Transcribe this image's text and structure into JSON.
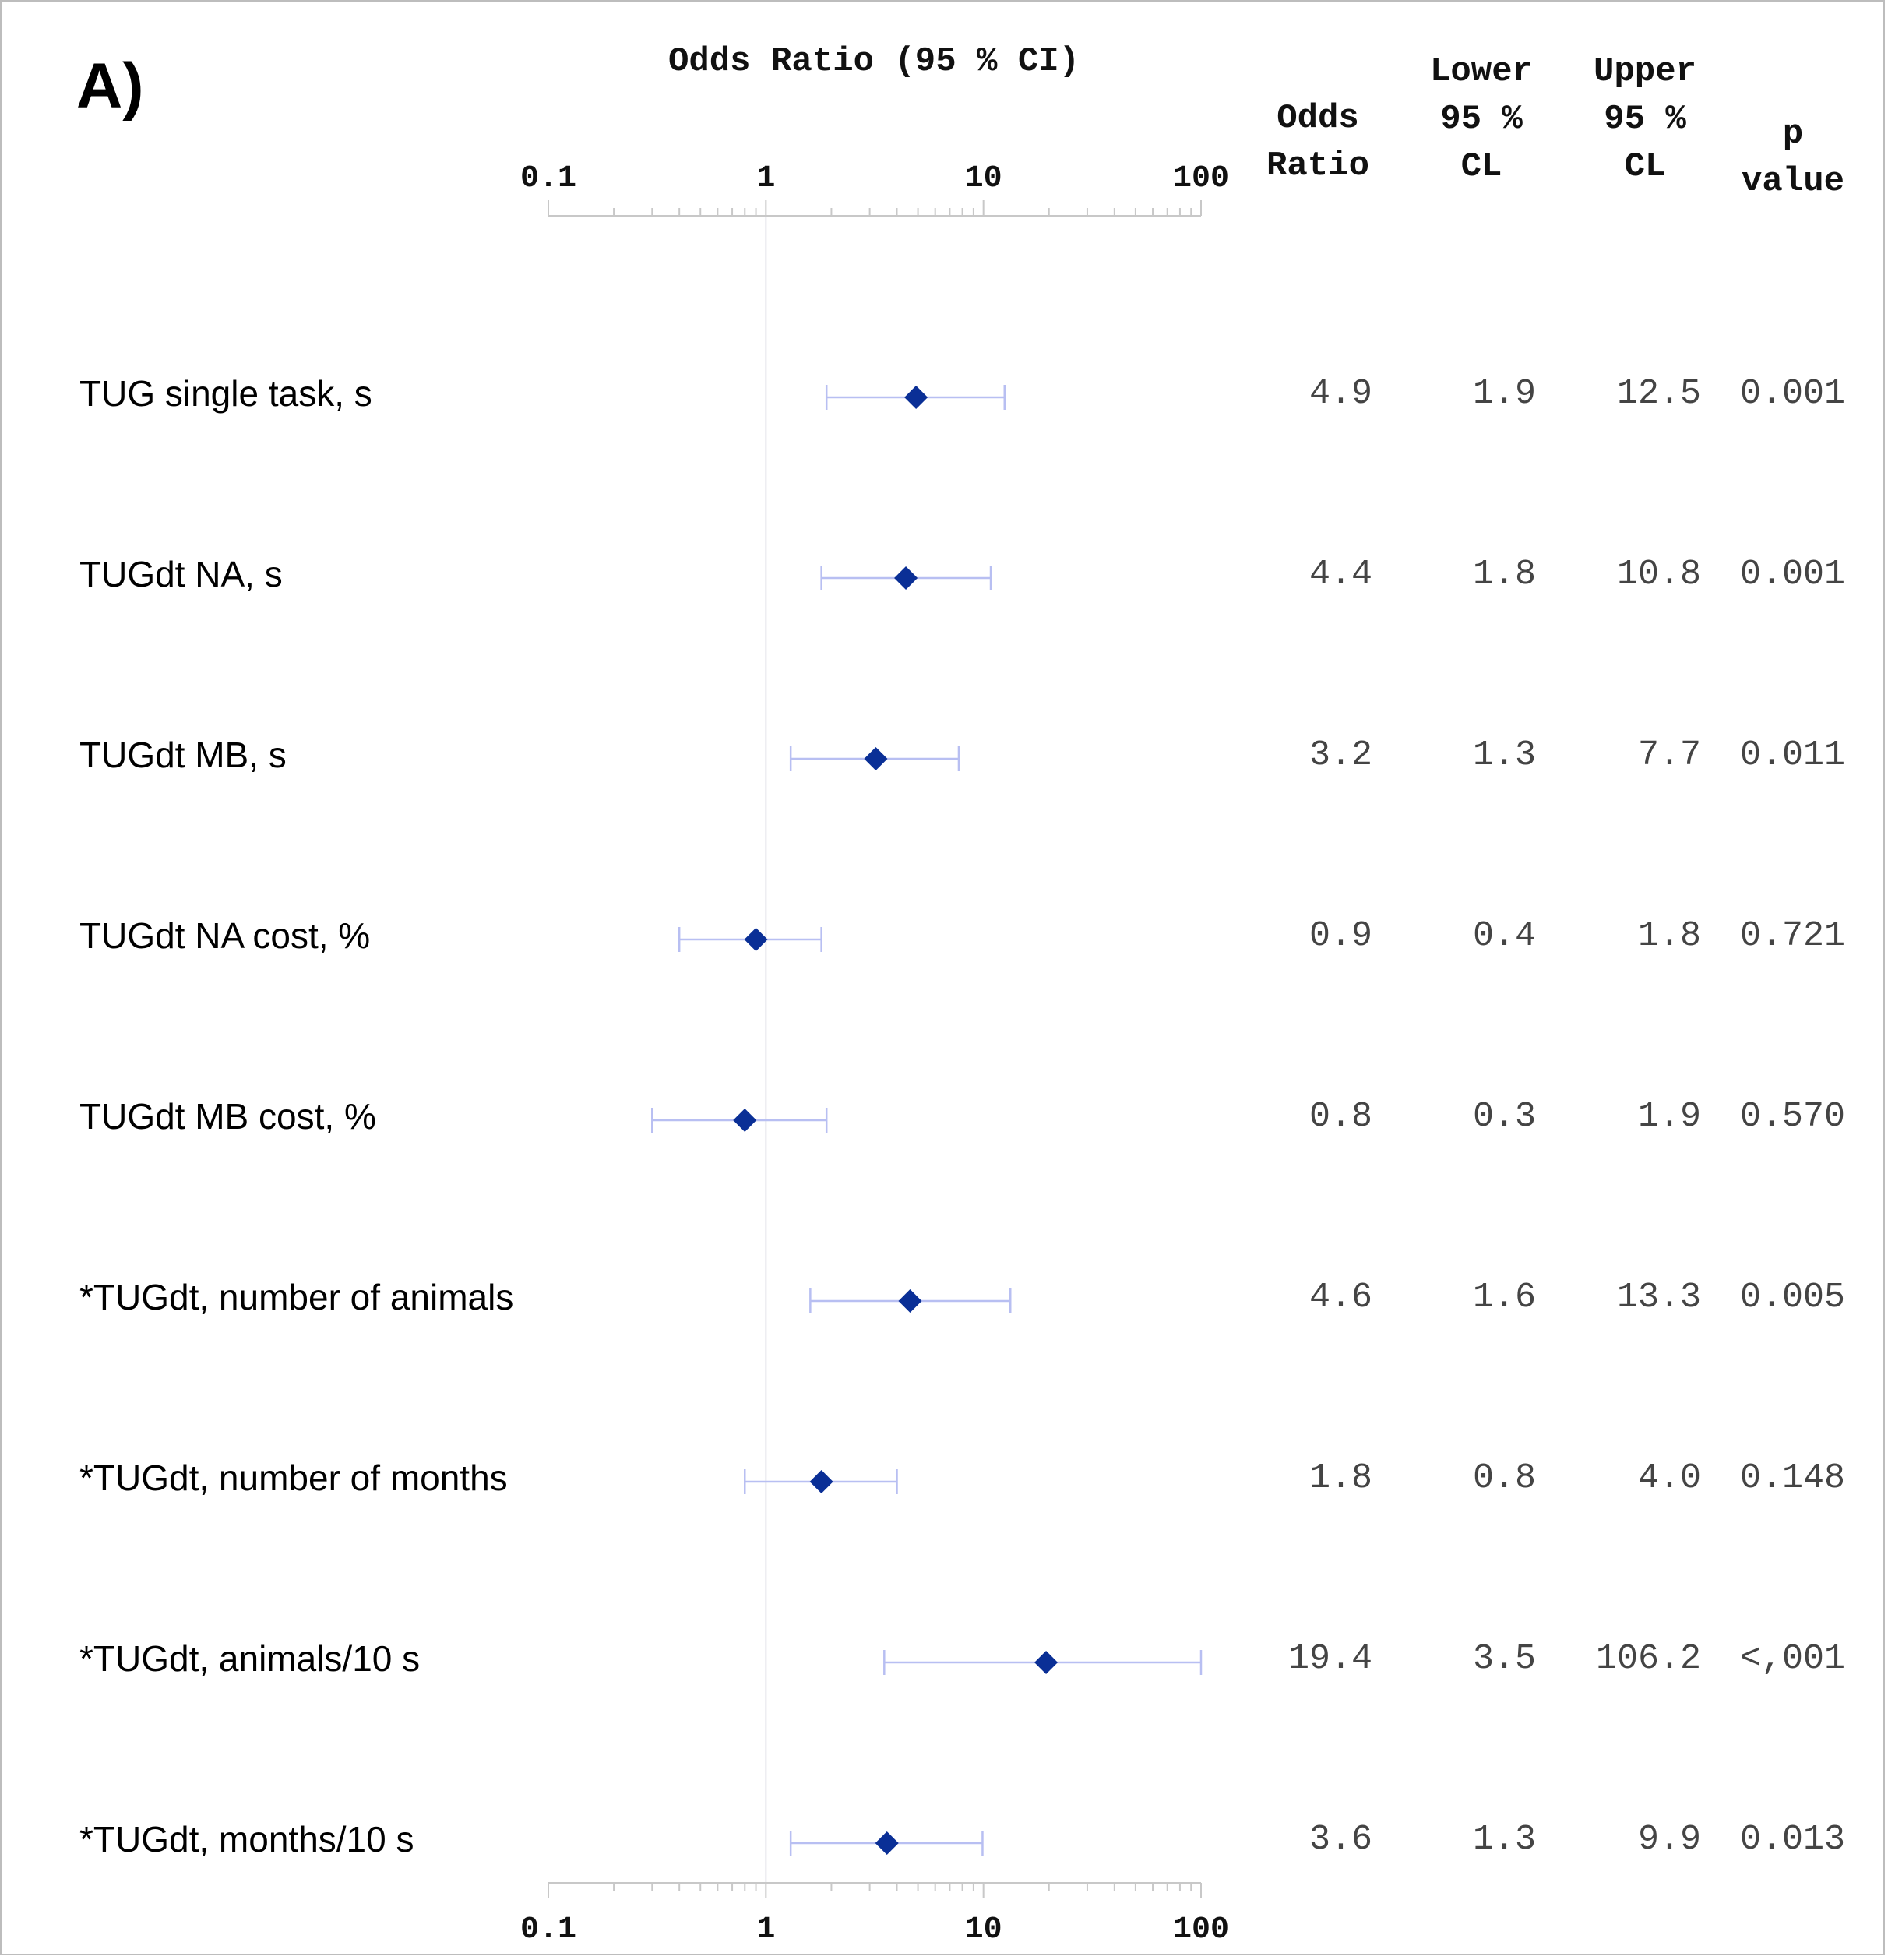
{
  "panel_label": "A)",
  "headers": {
    "odds_ratio": [
      "Odds",
      "Ratio"
    ],
    "lower": [
      "Lower",
      "95 %",
      "CL"
    ],
    "upper": [
      "Upper",
      "95 %",
      "CL"
    ],
    "p": [
      "p",
      "value"
    ]
  },
  "rows": [
    {
      "label": "TUG single task, s",
      "or": "4.9",
      "lower": "1.9",
      "upper": "12.5",
      "p": "0.001"
    },
    {
      "label": "TUGdt NA, s",
      "or": "4.4",
      "lower": "1.8",
      "upper": "10.8",
      "p": "0.001"
    },
    {
      "label": "TUGdt MB, s",
      "or": "3.2",
      "lower": "1.3",
      "upper": "7.7",
      "p": "0.011"
    },
    {
      "label": "TUGdt NA cost, %",
      "or": "0.9",
      "lower": "0.4",
      "upper": "1.8",
      "p": "0.721"
    },
    {
      "label": "TUGdt MB cost, %",
      "or": "0.8",
      "lower": "0.3",
      "upper": "1.9",
      "p": "0.570"
    },
    {
      "label": "*TUGdt, number of animals",
      "or": "4.6",
      "lower": "1.6",
      "upper": "13.3",
      "p": "0.005"
    },
    {
      "label": "*TUGdt, number of months",
      "or": "1.8",
      "lower": "0.8",
      "upper": "4.0",
      "p": "0.148"
    },
    {
      "label": "*TUGdt, animals/10 s",
      "or": "19.4",
      "lower": "3.5",
      "upper": "106.2",
      "p": "<,001"
    },
    {
      "label": "*TUGdt, months/10 s",
      "or": "3.6",
      "lower": "1.3",
      "upper": "9.9",
      "p": "0.013"
    }
  ],
  "chart_data": {
    "type": "forest",
    "title": "Odds Ratio (95 % CI)",
    "xscale": "log",
    "xlim": [
      0.1,
      100
    ],
    "ticks": [
      0.1,
      1,
      10,
      100
    ],
    "tick_labels": [
      "0.1",
      "1",
      "10",
      "100"
    ],
    "reference_line": 1,
    "categories": [
      "TUG single task, s",
      "TUGdt NA, s",
      "TUGdt MB, s",
      "TUGdt NA cost, %",
      "TUGdt MB cost, %",
      "*TUGdt, number of animals",
      "*TUGdt, number of months",
      "*TUGdt, animals/10 s",
      "*TUGdt, months/10 s"
    ],
    "odds_ratio": [
      4.9,
      4.4,
      3.2,
      0.9,
      0.8,
      4.6,
      1.8,
      19.4,
      3.6
    ],
    "lower_95": [
      1.9,
      1.8,
      1.3,
      0.4,
      0.3,
      1.6,
      0.8,
      3.5,
      1.3
    ],
    "upper_95": [
      12.5,
      10.8,
      7.7,
      1.8,
      1.9,
      13.3,
      4.0,
      106.2,
      9.9
    ],
    "marker_color": "#0a2f96",
    "ci_color": "#b8bff2",
    "axis_color": "#c8c8c8"
  }
}
